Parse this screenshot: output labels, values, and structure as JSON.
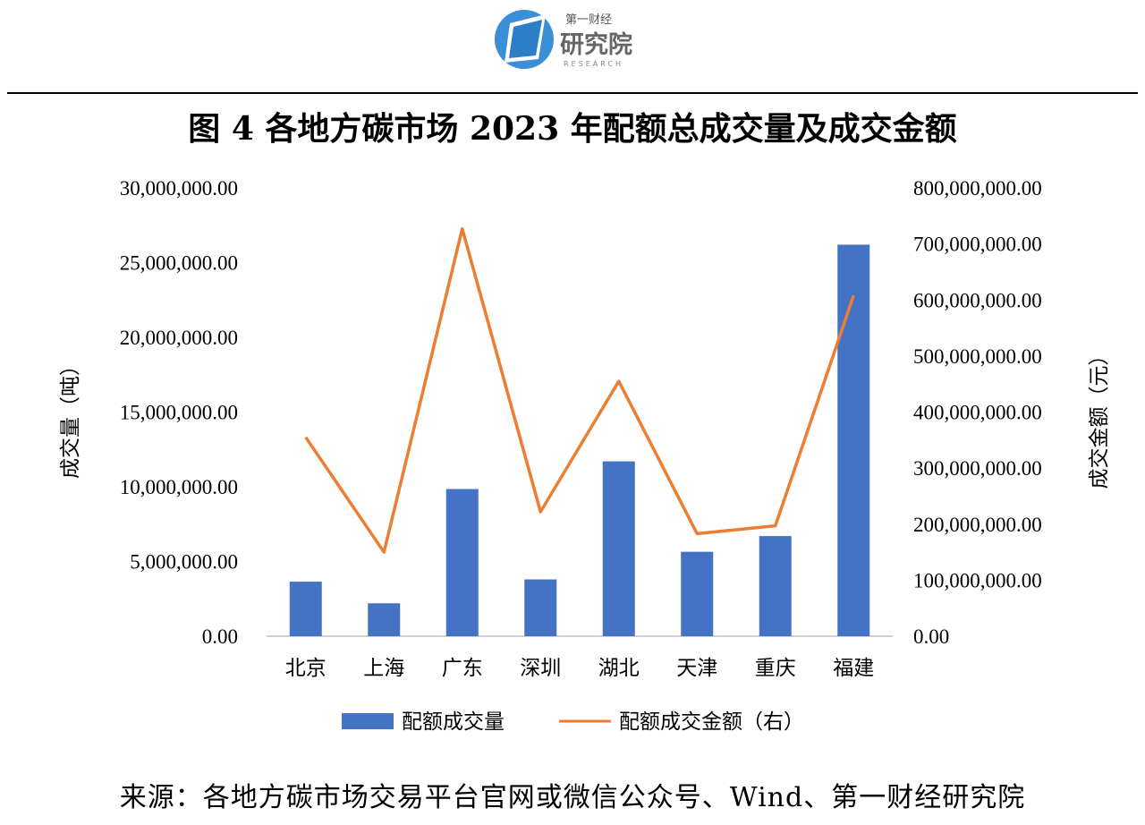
{
  "logo": {
    "cn_small": "第一财经",
    "cn_big": "研究院",
    "en": "RESEARCH"
  },
  "title": "图 4 各地方碳市场 2023 年配额总成交量及成交金额",
  "source": "来源：各地方碳市场交易平台官网或微信公众号、Wind、第一财经研究院",
  "colors": {
    "bar": "#4472C4",
    "line": "#ED7D31",
    "axis": "#bfbfbf"
  },
  "chart_data": {
    "type": "bar",
    "categories": [
      "北京",
      "上海",
      "广东",
      "深圳",
      "湖北",
      "天津",
      "重庆",
      "福建"
    ],
    "series": [
      {
        "name": "配额成交量",
        "type": "bar",
        "axis": "left",
        "values": [
          3650000,
          2200000,
          9850000,
          3800000,
          11700000,
          5650000,
          6700000,
          26200000
        ]
      },
      {
        "name": "配额成交金额（右）",
        "type": "line",
        "axis": "right",
        "values": [
          355000000,
          150000000,
          727000000,
          222000000,
          455000000,
          183000000,
          197000000,
          608000000
        ]
      }
    ],
    "y_left": {
      "label": "成交量（吨）",
      "ylim": [
        0,
        30000000
      ],
      "ticks": [
        "0.00",
        "5,000,000.00",
        "10,000,000.00",
        "15,000,000.00",
        "20,000,000.00",
        "25,000,000.00",
        "30,000,000.00"
      ]
    },
    "y_right": {
      "label": "成交金额（元）",
      "ylim": [
        0,
        800000000
      ],
      "ticks": [
        "0.00",
        "100,000,000.00",
        "200,000,000.00",
        "300,000,000.00",
        "400,000,000.00",
        "500,000,000.00",
        "600,000,000.00",
        "700,000,000.00",
        "800,000,000.00"
      ]
    },
    "grid": false,
    "legend": "bottom"
  }
}
